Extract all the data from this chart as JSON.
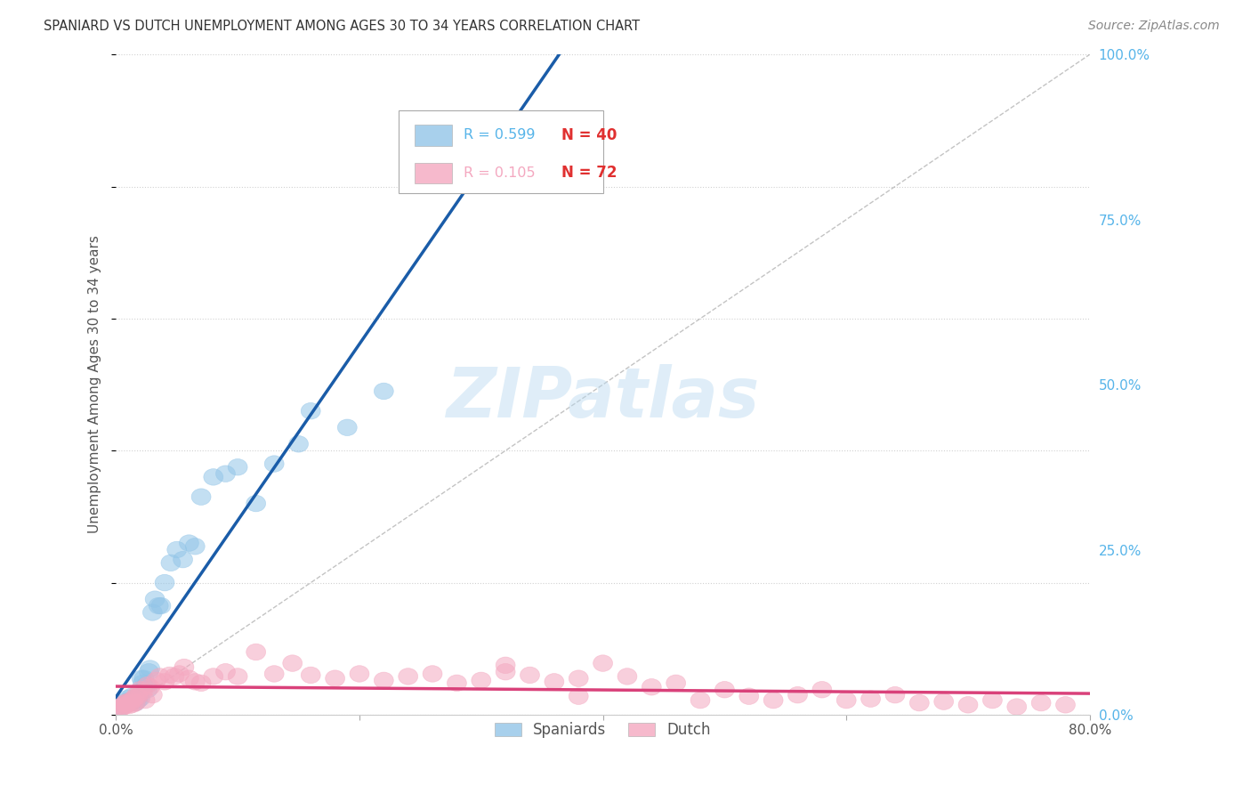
{
  "title": "SPANIARD VS DUTCH UNEMPLOYMENT AMONG AGES 30 TO 34 YEARS CORRELATION CHART",
  "source": "Source: ZipAtlas.com",
  "ylabel": "Unemployment Among Ages 30 to 34 years",
  "x_min": 0.0,
  "x_max": 0.8,
  "y_min": 0.0,
  "y_max": 1.0,
  "y_ticks_right": [
    0.0,
    0.25,
    0.5,
    0.75,
    1.0
  ],
  "y_tick_labels_right": [
    "0.0%",
    "25.0%",
    "50.0%",
    "75.0%",
    "100.0%"
  ],
  "watermark": "ZIPatlas",
  "legend_r1": "R = 0.599",
  "legend_n1": "N = 40",
  "legend_r2": "R = 0.105",
  "legend_n2": "N = 72",
  "color_spaniards": "#92c5e8",
  "color_dutch": "#f4a8c0",
  "color_line_spaniards": "#1a5ca8",
  "color_line_dutch": "#d9417a",
  "color_diag": "#aaaaaa",
  "spaniards_x": [
    0.003,
    0.006,
    0.008,
    0.01,
    0.01,
    0.012,
    0.013,
    0.015,
    0.016,
    0.017,
    0.018,
    0.019,
    0.02,
    0.021,
    0.022,
    0.023,
    0.025,
    0.026,
    0.027,
    0.028,
    0.03,
    0.032,
    0.035,
    0.037,
    0.04,
    0.045,
    0.05,
    0.055,
    0.06,
    0.065,
    0.07,
    0.08,
    0.09,
    0.1,
    0.115,
    0.13,
    0.15,
    0.16,
    0.19,
    0.22
  ],
  "spaniards_y": [
    0.01,
    0.015,
    0.02,
    0.025,
    0.02,
    0.018,
    0.028,
    0.022,
    0.018,
    0.025,
    0.022,
    0.028,
    0.025,
    0.055,
    0.048,
    0.055,
    0.045,
    0.038,
    0.065,
    0.07,
    0.155,
    0.175,
    0.165,
    0.165,
    0.2,
    0.23,
    0.25,
    0.235,
    0.26,
    0.255,
    0.33,
    0.36,
    0.365,
    0.375,
    0.32,
    0.38,
    0.41,
    0.46,
    0.435,
    0.49
  ],
  "dutch_x": [
    0.002,
    0.004,
    0.005,
    0.006,
    0.007,
    0.008,
    0.009,
    0.01,
    0.011,
    0.012,
    0.013,
    0.014,
    0.015,
    0.016,
    0.017,
    0.018,
    0.02,
    0.022,
    0.024,
    0.026,
    0.028,
    0.03,
    0.033,
    0.036,
    0.04,
    0.044,
    0.048,
    0.052,
    0.056,
    0.06,
    0.065,
    0.07,
    0.08,
    0.09,
    0.1,
    0.115,
    0.13,
    0.145,
    0.16,
    0.18,
    0.2,
    0.22,
    0.24,
    0.26,
    0.28,
    0.3,
    0.32,
    0.34,
    0.36,
    0.38,
    0.4,
    0.42,
    0.44,
    0.46,
    0.48,
    0.5,
    0.52,
    0.54,
    0.56,
    0.58,
    0.6,
    0.62,
    0.64,
    0.66,
    0.68,
    0.7,
    0.72,
    0.74,
    0.76,
    0.78,
    0.32,
    0.38
  ],
  "dutch_y": [
    0.012,
    0.01,
    0.015,
    0.012,
    0.018,
    0.014,
    0.016,
    0.02,
    0.014,
    0.018,
    0.022,
    0.016,
    0.025,
    0.018,
    0.03,
    0.028,
    0.038,
    0.035,
    0.022,
    0.045,
    0.042,
    0.03,
    0.052,
    0.058,
    0.05,
    0.06,
    0.058,
    0.062,
    0.072,
    0.055,
    0.05,
    0.048,
    0.058,
    0.065,
    0.058,
    0.095,
    0.062,
    0.078,
    0.06,
    0.055,
    0.062,
    0.052,
    0.058,
    0.062,
    0.048,
    0.052,
    0.065,
    0.06,
    0.05,
    0.055,
    0.078,
    0.058,
    0.042,
    0.048,
    0.022,
    0.038,
    0.028,
    0.022,
    0.03,
    0.038,
    0.022,
    0.024,
    0.03,
    0.018,
    0.02,
    0.015,
    0.022,
    0.012,
    0.018,
    0.015,
    0.075,
    0.028
  ]
}
